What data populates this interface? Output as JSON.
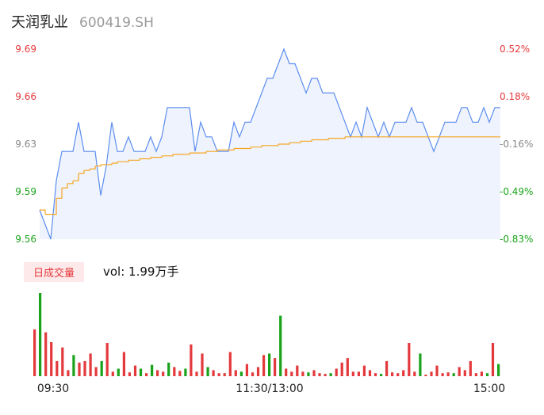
{
  "header": {
    "name": "天润乳业",
    "code": "600419.SH"
  },
  "volume_tab": "日成交量",
  "volume_text": "vol: 1.99万手",
  "colors": {
    "price": "#5b8def",
    "avg": "#f5a623",
    "up": "#e4393c",
    "down": "#1aa31a",
    "fill": "#eef3fd"
  },
  "chart_data": [
    {
      "type": "line",
      "y_left_ticks": [
        "9.69",
        "9.66",
        "9.63",
        "9.59",
        "9.56"
      ],
      "y_right_ticks": [
        "0.52%",
        "0.18%",
        "-0.16%",
        "-0.49%",
        "-0.83%"
      ],
      "ylim": [
        9.56,
        9.69
      ],
      "x_labels": [
        "09:30",
        "11:30/13:00",
        "15:00"
      ],
      "series": [
        {
          "role": "price",
          "values": [
            9.58,
            9.57,
            9.56,
            9.6,
            9.62,
            9.62,
            9.62,
            9.64,
            9.62,
            9.62,
            9.62,
            9.59,
            9.61,
            9.64,
            9.62,
            9.62,
            9.63,
            9.62,
            9.62,
            9.62,
            9.63,
            9.62,
            9.63,
            9.65,
            9.65,
            9.65,
            9.65,
            9.65,
            9.62,
            9.64,
            9.63,
            9.63,
            9.62,
            9.62,
            9.62,
            9.64,
            9.63,
            9.64,
            9.64,
            9.65,
            9.66,
            9.67,
            9.67,
            9.68,
            9.69,
            9.68,
            9.68,
            9.67,
            9.66,
            9.67,
            9.67,
            9.66,
            9.66,
            9.66,
            9.65,
            9.64,
            9.63,
            9.64,
            9.63,
            9.65,
            9.64,
            9.63,
            9.64,
            9.63,
            9.64,
            9.64,
            9.64,
            9.65,
            9.64,
            9.64,
            9.63,
            9.62,
            9.63,
            9.64,
            9.64,
            9.64,
            9.65,
            9.65,
            9.64,
            9.64,
            9.65,
            9.64,
            9.65,
            9.65
          ]
        },
        {
          "role": "average",
          "values": [
            9.58,
            9.577,
            9.577,
            9.588,
            9.595,
            9.598,
            9.6,
            9.605,
            9.607,
            9.608,
            9.61,
            9.611,
            9.611,
            9.612,
            9.613,
            9.613,
            9.614,
            9.614,
            9.615,
            9.615,
            9.616,
            9.616,
            9.617,
            9.617,
            9.618,
            9.618,
            9.618,
            9.619,
            9.619,
            9.619,
            9.62,
            9.62,
            9.621,
            9.621,
            9.621,
            9.622,
            9.622,
            9.622,
            9.623,
            9.623,
            9.624,
            9.624,
            9.624,
            9.625,
            9.625,
            9.626,
            9.626,
            9.627,
            9.627,
            9.628,
            9.628,
            9.628,
            9.629,
            9.629,
            9.629,
            9.63,
            9.63,
            9.63,
            9.63,
            9.63,
            9.63,
            9.63,
            9.63,
            9.63,
            9.63,
            9.63,
            9.63,
            9.63,
            9.63,
            9.63,
            9.63,
            9.63,
            9.63,
            9.63,
            9.63,
            9.63,
            9.63,
            9.63,
            9.63,
            9.63,
            9.63,
            9.63,
            9.63,
            9.63
          ]
        }
      ]
    },
    {
      "type": "bar",
      "values": [
        62,
        110,
        58,
        45,
        20,
        38,
        8,
        28,
        18,
        20,
        30,
        12,
        20,
        44,
        6,
        10,
        32,
        5,
        14,
        10,
        4,
        15,
        8,
        6,
        18,
        12,
        7,
        10,
        42,
        6,
        30,
        12,
        8,
        4,
        4,
        32,
        8,
        6,
        16,
        5,
        12,
        28,
        30,
        24,
        80,
        10,
        6,
        14,
        6,
        5,
        8,
        4,
        3,
        4,
        10,
        18,
        24,
        6,
        6,
        14,
        8,
        4,
        3,
        20,
        5,
        4,
        8,
        44,
        6,
        30,
        2,
        6,
        14,
        4,
        5,
        4,
        12,
        8,
        20,
        4,
        6,
        4,
        44,
        16
      ],
      "up": [
        true,
        false,
        true,
        true,
        true,
        true,
        true,
        false,
        true,
        true,
        true,
        true,
        false,
        true,
        true,
        false,
        true,
        true,
        true,
        false,
        true,
        false,
        true,
        true,
        false,
        true,
        true,
        false,
        true,
        true,
        true,
        false,
        true,
        true,
        true,
        true,
        true,
        false,
        true,
        true,
        true,
        true,
        false,
        true,
        false,
        true,
        true,
        true,
        true,
        false,
        true,
        true,
        true,
        false,
        true,
        true,
        true,
        true,
        true,
        true,
        true,
        true,
        false,
        true,
        true,
        true,
        true,
        true,
        true,
        false,
        true,
        true,
        true,
        true,
        true,
        false,
        true,
        true,
        true,
        true,
        true,
        false,
        true,
        false
      ]
    }
  ]
}
